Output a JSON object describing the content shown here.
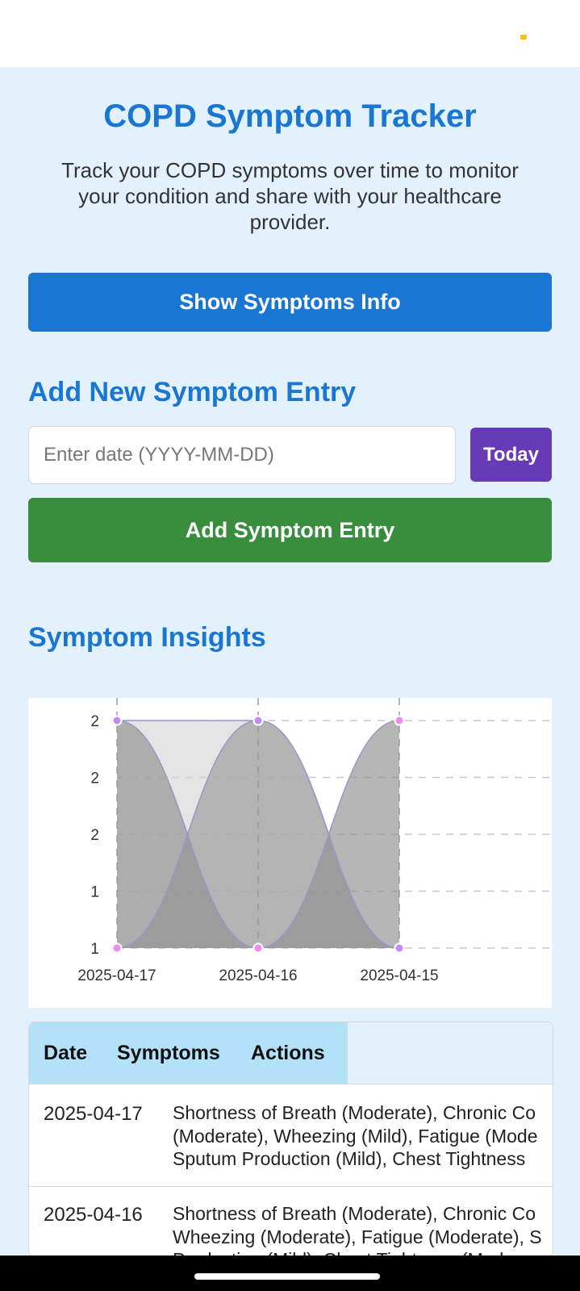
{
  "header": {
    "title": "COPD Symptom Tracker",
    "subtitle": "Track your COPD symptoms over time to monitor your condition and share with your healthcare provider."
  },
  "buttons": {
    "show_info": "Show Symptoms Info",
    "today": "Today",
    "add_entry": "Add Symptom Entry"
  },
  "add_section": {
    "title": "Add New Symptom Entry",
    "date_placeholder": "Enter date (YYYY-MM-DD)",
    "date_value": ""
  },
  "insights": {
    "title": "Symptom Insights"
  },
  "chart_data": {
    "type": "area",
    "x": [
      "2025-04-17",
      "2025-04-16",
      "2025-04-15"
    ],
    "y_tick_labels": [
      "2",
      "2",
      "2",
      "1",
      "1"
    ],
    "ylim": [
      1,
      2
    ],
    "grid": true,
    "legend": "none",
    "series": [
      {
        "values": [
          2,
          1,
          2
        ],
        "fill": "#8f8f8f",
        "stroke": "#9c96c8",
        "point_color": "#f08bf5"
      },
      {
        "values": [
          1,
          2,
          1
        ],
        "fill": "#999999",
        "stroke": "#9c96c8",
        "point_color": "#f08bf5"
      },
      {
        "values": [
          2,
          2,
          1
        ],
        "fill": "#d6d6d6",
        "stroke": "#9c96c8",
        "point_color": "#c58cf5"
      }
    ]
  },
  "table": {
    "headers": [
      "Date",
      "Symptoms",
      "Actions"
    ],
    "rows": [
      {
        "date": "2025-04-17",
        "symptom_lines": [
          "Shortness of Breath (Moderate), Chronic Co",
          "(Moderate), Wheezing (Mild), Fatigue (Mode",
          "Sputum Production (Mild), Chest Tightness"
        ]
      },
      {
        "date": "2025-04-16",
        "symptom_lines": [
          "Shortness of Breath (Moderate), Chronic Co",
          "Wheezing (Moderate), Fatigue (Moderate), S",
          "Production (Mild), Chest Tightness (Modera"
        ]
      }
    ]
  },
  "colors": {
    "primary": "#1976d2",
    "today_button": "#673ab7",
    "add_button": "#388e3c",
    "background": "#e3f1fc",
    "table_header": "#b3e1f7"
  }
}
